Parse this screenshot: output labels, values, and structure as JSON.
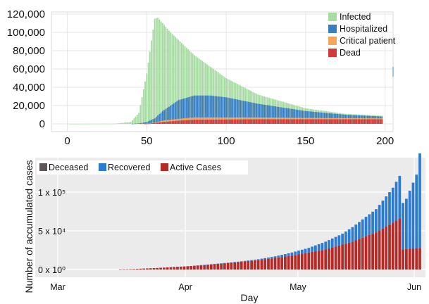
{
  "chart_data": [
    {
      "type": "bar",
      "stacked": true,
      "title": "",
      "xlabel": "",
      "ylabel": "",
      "xlim": [
        -10,
        205
      ],
      "ylim": [
        0,
        120000
      ],
      "x_ticks": [
        0,
        50,
        100,
        150,
        200
      ],
      "y_ticks": [
        0,
        20000,
        40000,
        60000,
        80000,
        100000,
        120000
      ],
      "x_tick_labels": [
        "0",
        "50",
        "100",
        "150",
        "200"
      ],
      "y_tick_labels": [
        "0",
        "20,000",
        "40,000",
        "60,000",
        "80,000",
        "100,000",
        "120,000"
      ],
      "legend_position": "top-right",
      "grid": true,
      "x_start": 1,
      "x_end": 198,
      "series": [
        {
          "name": "Infected",
          "color": "#a8dca4",
          "keypoints": [
            [
              1,
              0
            ],
            [
              30,
              200
            ],
            [
              40,
              2000
            ],
            [
              45,
              12000
            ],
            [
              50,
              55000
            ],
            [
              55,
              115000
            ],
            [
              57,
              116000
            ],
            [
              65,
              100000
            ],
            [
              80,
              75000
            ],
            [
              100,
              50000
            ],
            [
              120,
              32000
            ],
            [
              150,
              17000
            ],
            [
              175,
              11000
            ],
            [
              198,
              9000
            ]
          ]
        },
        {
          "name": "Hospitalized",
          "color": "#3a7ebf",
          "keypoints": [
            [
              1,
              0
            ],
            [
              40,
              0
            ],
            [
              45,
              500
            ],
            [
              50,
              2000
            ],
            [
              55,
              6000
            ],
            [
              60,
              14000
            ],
            [
              70,
              26000
            ],
            [
              80,
              31000
            ],
            [
              90,
              31000
            ],
            [
              100,
              29000
            ],
            [
              120,
              22000
            ],
            [
              150,
              14000
            ],
            [
              175,
              10000
            ],
            [
              198,
              8000
            ]
          ]
        },
        {
          "name": "Critical patient",
          "color": "#f6a55a",
          "keypoints": [
            [
              1,
              0
            ],
            [
              45,
              0
            ],
            [
              50,
              300
            ],
            [
              55,
              1500
            ],
            [
              60,
              3500
            ],
            [
              70,
              5500
            ],
            [
              80,
              7000
            ],
            [
              120,
              7000
            ],
            [
              150,
              6500
            ],
            [
              198,
              6000
            ]
          ]
        },
        {
          "name": "Dead",
          "color": "#d33a3a",
          "keypoints": [
            [
              1,
              0
            ],
            [
              48,
              0
            ],
            [
              52,
              300
            ],
            [
              60,
              2000
            ],
            [
              70,
              3500
            ],
            [
              80,
              4500
            ],
            [
              120,
              5000
            ],
            [
              198,
              5000
            ]
          ]
        }
      ],
      "color_note": "Each value is the visible height of that colored layer at that x; layers drawn Infected (back) to Dead (front), all starting at 0."
    },
    {
      "type": "bar",
      "stacked": true,
      "title": "",
      "xlabel": "Day",
      "ylabel": "Number of accumulated cases",
      "xlim": [
        0,
        104
      ],
      "ylim": [
        0,
        160000
      ],
      "x_ticks": [
        6,
        40,
        70,
        101
      ],
      "x_tick_labels": [
        "Mar",
        "Apr",
        "May",
        "Jun"
      ],
      "y_ticks": [
        0,
        50000,
        100000
      ],
      "y_tick_labels": [
        "0 x 10⁰",
        "5 x 10⁴",
        "1 x 10⁵"
      ],
      "legend_position": "top-left",
      "grid": true,
      "first_day": 18,
      "last_day": 108,
      "series": [
        {
          "name": "Deceased",
          "color": "#5e5658",
          "keypoints": [
            [
              18,
              0
            ],
            [
              108,
              0
            ]
          ]
        },
        {
          "name": "Recovered",
          "color": "#2b7bd1",
          "keypoints": [
            [
              18,
              0
            ],
            [
              40,
              0
            ],
            [
              55,
              600
            ],
            [
              65,
              2000
            ],
            [
              75,
              6000
            ],
            [
              85,
              14000
            ],
            [
              95,
              30000
            ],
            [
              100,
              45000
            ],
            [
              104,
              65000
            ],
            [
              107,
              95000
            ],
            [
              108,
              122000
            ]
          ]
        },
        {
          "name": "Active Cases",
          "color": "#b52a26",
          "keypoints": [
            [
              18,
              0
            ],
            [
              22,
              500
            ],
            [
              30,
              2000
            ],
            [
              40,
              4500
            ],
            [
              50,
              8000
            ],
            [
              60,
              12000
            ],
            [
              70,
              18000
            ],
            [
              80,
              26000
            ],
            [
              88,
              36000
            ],
            [
              95,
              48000
            ],
            [
              99,
              58000
            ],
            [
              102,
              66000
            ],
            [
              103,
              26000
            ],
            [
              108,
              28000
            ]
          ]
        }
      ],
      "color_note": "Recovered stacked on top of Active Cases (and Deceased)."
    }
  ],
  "legend1": [
    "Infected",
    "Hospitalized",
    "Critical patient",
    "Dead"
  ],
  "legend2": [
    "Deceased",
    "Recovered",
    "Active Cases"
  ]
}
